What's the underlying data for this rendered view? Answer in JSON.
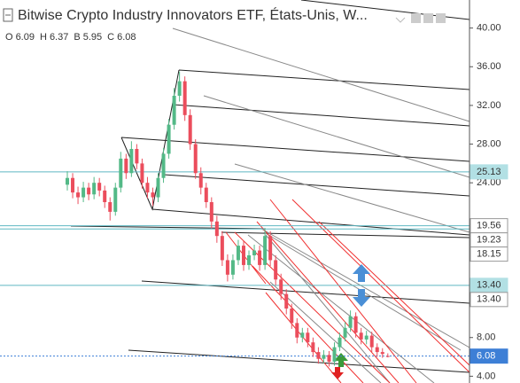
{
  "chart_data": {
    "type": "candlestick",
    "title": "Bitwise Crypto Industry Innovators ETF, États-Unis, W...",
    "ohlc_legend": [
      {
        "label": "O",
        "value": 6.09
      },
      {
        "label": "H",
        "value": 6.37
      },
      {
        "label": "B",
        "value": 5.95
      },
      {
        "label": "C",
        "value": 6.08
      }
    ],
    "up_color": "#53b987",
    "down_color": "#eb4d5c",
    "open": [
      23.8,
      24.5,
      23.0,
      22.5,
      23.5,
      22.8,
      24.0,
      23.2,
      22.0,
      21.0,
      23.5,
      26.5,
      25.0,
      27.5,
      26.0,
      24.0,
      23.0,
      22.5,
      24.5,
      27.0,
      30.0,
      33.0,
      34.5,
      31.0,
      28.0,
      25.0,
      23.5,
      22.0,
      20.0,
      18.5,
      16.0,
      14.5,
      16.0,
      17.5,
      15.5,
      16.5,
      17.0,
      15.5,
      18.5,
      16.0,
      14.0,
      12.5,
      11.0,
      9.5,
      8.0,
      8.5,
      7.5,
      6.5,
      5.8,
      6.2,
      5.5,
      7.0,
      8.0,
      9.0,
      10.2,
      8.5,
      7.8,
      8.2,
      7.0,
      6.5,
      6.09
    ],
    "high": [
      25.2,
      25.0,
      23.6,
      24.1,
      24.0,
      24.6,
      24.5,
      23.7,
      22.5,
      24.0,
      27.2,
      27.0,
      28.3,
      28.0,
      26.5,
      24.6,
      23.5,
      25.0,
      27.6,
      30.6,
      33.8,
      35.5,
      35.0,
      31.6,
      28.5,
      25.6,
      24.0,
      22.5,
      20.6,
      19.0,
      16.6,
      16.6,
      18.1,
      18.0,
      17.0,
      17.6,
      17.5,
      19.3,
      19.0,
      16.5,
      14.6,
      13.0,
      11.5,
      10.0,
      9.0,
      9.0,
      8.0,
      7.0,
      6.7,
      6.6,
      7.5,
      8.5,
      9.6,
      10.8,
      10.6,
      9.0,
      8.7,
      8.6,
      7.4,
      6.9,
      6.37
    ],
    "low": [
      23.2,
      22.4,
      21.8,
      22.0,
      22.2,
      22.3,
      22.6,
      21.4,
      20.1,
      20.6,
      23.0,
      24.4,
      24.6,
      25.4,
      23.4,
      22.4,
      21.6,
      22.0,
      24.0,
      26.5,
      29.5,
      32.4,
      30.4,
      27.4,
      24.4,
      22.8,
      21.4,
      19.3,
      17.8,
      15.4,
      13.8,
      14.0,
      15.5,
      14.9,
      15.0,
      16.0,
      14.9,
      15.0,
      15.4,
      13.4,
      11.9,
      10.4,
      8.9,
      7.4,
      7.5,
      7.0,
      6.0,
      5.3,
      5.3,
      5.0,
      5.1,
      6.6,
      7.6,
      8.6,
      8.0,
      7.3,
      7.3,
      6.5,
      6.0,
      5.9,
      5.95
    ],
    "close": [
      24.5,
      23.0,
      22.5,
      23.5,
      22.8,
      24.0,
      23.2,
      22.0,
      21.0,
      23.5,
      26.5,
      25.0,
      27.5,
      26.0,
      24.0,
      23.0,
      22.5,
      24.5,
      27.0,
      30.0,
      33.0,
      34.5,
      31.0,
      28.0,
      25.0,
      23.5,
      22.0,
      20.0,
      18.5,
      16.0,
      14.5,
      16.0,
      17.5,
      15.5,
      16.5,
      17.0,
      15.5,
      18.5,
      16.0,
      14.0,
      12.5,
      11.0,
      9.5,
      8.0,
      8.5,
      7.5,
      6.5,
      5.8,
      6.2,
      5.5,
      7.0,
      8.0,
      9.0,
      10.2,
      8.5,
      7.8,
      8.2,
      7.0,
      6.5,
      6.3,
      6.08
    ],
    "ylim": [
      3.3,
      42.9
    ],
    "yticks": [
      {
        "value": 4,
        "label": "4.00"
      },
      {
        "value": 8,
        "label": "8.00"
      },
      {
        "value": 24,
        "label": "24.00"
      },
      {
        "value": 28,
        "label": "28.00"
      },
      {
        "value": 32,
        "label": "32.00"
      },
      {
        "value": 36,
        "label": "36.00"
      },
      {
        "value": 40,
        "label": "40.00"
      }
    ],
    "price_labels": [
      {
        "value": 25.13,
        "fill": "#b2e0e4",
        "line": "#5fb8c2"
      },
      {
        "value": 19.56,
        "fill": "#ffffff",
        "line": "#5fb8c2"
      },
      {
        "value": 19.23,
        "fill": "#ffffff",
        "line": "#5fb8c2"
      },
      {
        "value": 18.15,
        "fill": "#ffffff"
      },
      {
        "value": 13.4,
        "label": "13.40",
        "fill": "#b2e0e4",
        "line": "#5fb8c2"
      },
      {
        "value": 13.4,
        "label": "13.40",
        "fill": "#ffffff"
      },
      {
        "value": 6.08,
        "fill": "#3d7fd6",
        "line": "#3d7fd6"
      }
    ]
  }
}
